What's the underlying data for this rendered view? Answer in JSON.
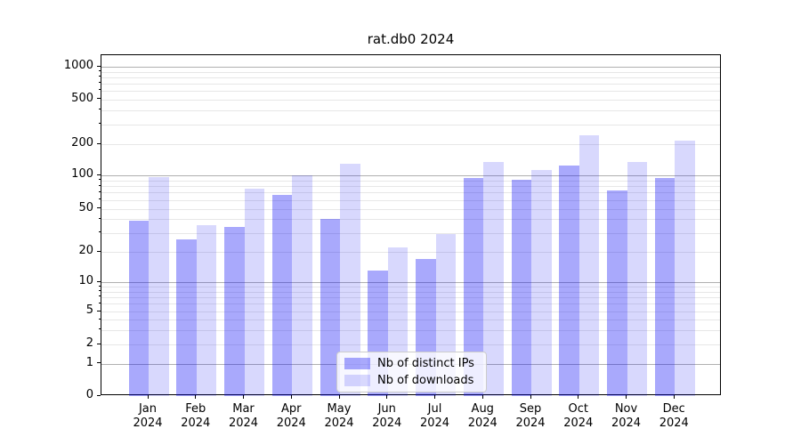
{
  "window": {
    "background": "#ffffff"
  },
  "chart_data": {
    "type": "bar",
    "title": "rat.db0 2024",
    "x_months": [
      "Jan",
      "Feb",
      "Mar",
      "Apr",
      "May",
      "Jun",
      "Jul",
      "Aug",
      "Sep",
      "Oct",
      "Nov",
      "Dec"
    ],
    "x_year": "2024",
    "series": [
      {
        "name": "Nb of distinct IPs",
        "color": "rgba(10,10,245,0.35)",
        "values": [
          39,
          26,
          34,
          66,
          40,
          13,
          17,
          95,
          92,
          124,
          73,
          95
        ]
      },
      {
        "name": "Nb of downloads",
        "color": "rgba(10,10,245,0.16)",
        "values": [
          96,
          35,
          76,
          100,
          130,
          22,
          29,
          134,
          112,
          240,
          134,
          215
        ]
      }
    ],
    "yscale": "symlog",
    "yticks": [
      0,
      1,
      2,
      5,
      10,
      20,
      50,
      100,
      200,
      500,
      1000
    ],
    "ytick_labels": [
      "0",
      "1",
      "2",
      "5",
      "10",
      "20",
      "50",
      "100",
      "200",
      "500",
      "1000"
    ],
    "ylim": [
      0,
      1270
    ],
    "grid": true,
    "legend_position": "lower center",
    "axis_color": "#000000",
    "major_grid_color": "#b0b0b0",
    "minor_grid_color": "rgba(176,176,176,0.30)"
  }
}
